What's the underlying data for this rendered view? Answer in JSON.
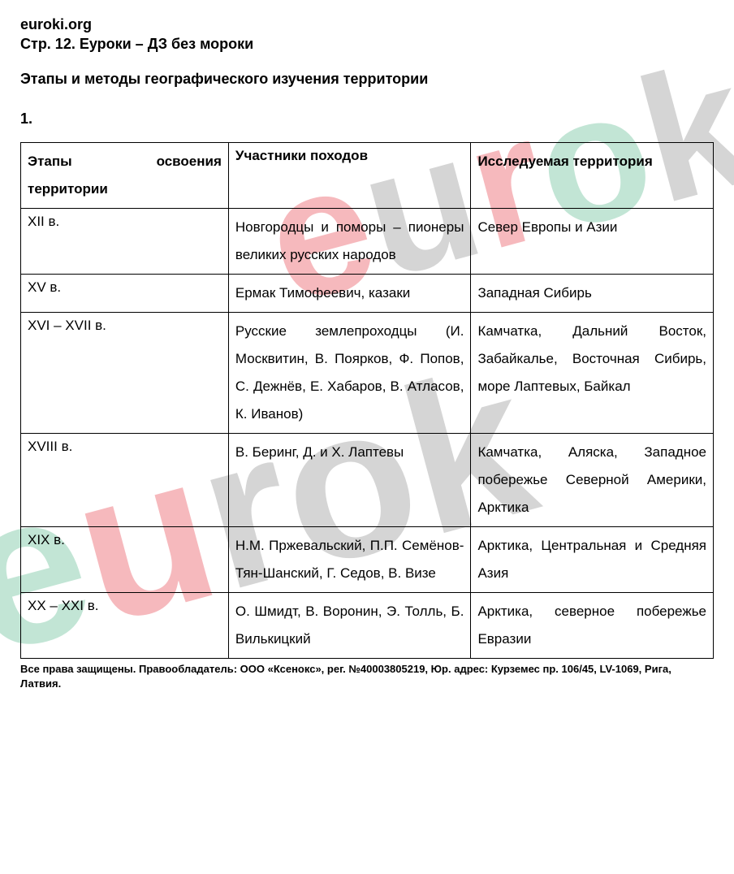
{
  "header": {
    "site_name": "euroki.org",
    "page_ref": "Стр. 12. Еуроки – ДЗ без мороки"
  },
  "title": "Этапы и методы географического изучения территории",
  "question_number": "1.",
  "table": {
    "columns": [
      "Этапы освоения территории",
      "Участники походов",
      "Исследуемая территория"
    ],
    "rows": [
      {
        "period": "XII в.",
        "participants": "Новгородцы и поморы – пионеры великих русских народов",
        "territory": "Север Европы и Азии"
      },
      {
        "period": "XV в.",
        "participants": "Ермак Тимофеевич, казаки",
        "territory": "Западная Сибирь"
      },
      {
        "period": "XVI – XVII в.",
        "participants": "Русские землепроходцы (И. Москвитин, В. Поярков, Ф. Попов, С. Дежнёв, Е. Хабаров, В. Атласов, К. Иванов)",
        "territory": "Камчатка, Дальний Восток, Забайкалье, Восточная Сибирь, море Лаптевых, Байкал"
      },
      {
        "period": "XVIII в.",
        "participants": "В. Беринг, Д. и Х. Лаптевы",
        "territory": "Камчатка, Аляска, Западное побережье Северной Америки, Арктика"
      },
      {
        "period": "XIX в.",
        "participants": "Н.М. Пржевальский, П.П. Семёнов-Тян-Шанский, Г. Седов, В. Визе",
        "territory": "Арктика, Центральная и Средняя Азия"
      },
      {
        "period": "XX – XXI в.",
        "participants": "О. Шмидт, В. Воронин, Э. Толль, Б. Вилькицкий",
        "territory": "Арктика, северное побережье Евразии"
      }
    ]
  },
  "footer": "Все права защищены. Правообладатель: ООО «Ксенокс», рег. №40003805219, Юр. адрес: Курземес пр. 106/45, LV-1069, Рига, Латвия.",
  "colors": {
    "text": "#000000",
    "background": "#ffffff",
    "border": "#000000",
    "wm_red": "#e63946",
    "wm_green": "#52b788",
    "wm_gray": "#888888"
  }
}
